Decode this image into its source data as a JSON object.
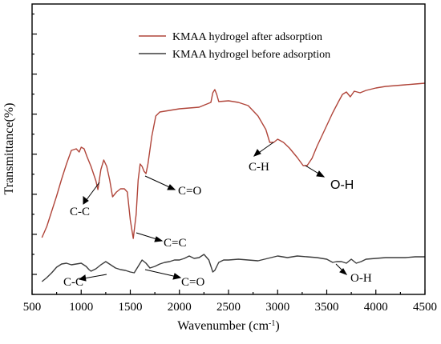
{
  "chart_data": {
    "type": "line",
    "xlabel_main": "Wavenumber (cm",
    "xlabel_sup": "-1",
    "xlabel_end": ")",
    "ylabel": "Transmittance(%)",
    "xlim": [
      500,
      4500
    ],
    "xticks": [
      500,
      1000,
      1500,
      2000,
      2500,
      3000,
      3500,
      4000,
      4500
    ],
    "xtick_labels": [
      "500",
      "1000",
      "1500",
      "2000",
      "2500",
      "3000",
      "3500",
      "4000",
      "4500"
    ],
    "y_tick_labels_shown": false,
    "legend_position": "top-right",
    "series": [
      {
        "name": "KMAA hydrogel after adsorption",
        "color": "#b0453a",
        "points": [
          [
            600,
            297
          ],
          [
            650,
            283
          ],
          [
            700,
            264
          ],
          [
            750,
            245
          ],
          [
            800,
            224
          ],
          [
            850,
            205
          ],
          [
            900,
            188
          ],
          [
            950,
            186
          ],
          [
            980,
            190
          ],
          [
            1000,
            184
          ],
          [
            1030,
            186
          ],
          [
            1060,
            196
          ],
          [
            1100,
            208
          ],
          [
            1150,
            226
          ],
          [
            1170,
            237
          ],
          [
            1200,
            212
          ],
          [
            1230,
            200
          ],
          [
            1260,
            208
          ],
          [
            1290,
            225
          ],
          [
            1320,
            246
          ],
          [
            1360,
            240
          ],
          [
            1400,
            236
          ],
          [
            1440,
            236
          ],
          [
            1470,
            240
          ],
          [
            1500,
            275
          ],
          [
            1530,
            298
          ],
          [
            1560,
            268
          ],
          [
            1580,
            225
          ],
          [
            1600,
            205
          ],
          [
            1620,
            208
          ],
          [
            1640,
            214
          ],
          [
            1660,
            217
          ],
          [
            1680,
            205
          ],
          [
            1720,
            170
          ],
          [
            1760,
            145
          ],
          [
            1800,
            140
          ],
          [
            1900,
            138
          ],
          [
            2000,
            136
          ],
          [
            2100,
            135
          ],
          [
            2200,
            134
          ],
          [
            2280,
            130
          ],
          [
            2320,
            128
          ],
          [
            2340,
            116
          ],
          [
            2360,
            112
          ],
          [
            2380,
            118
          ],
          [
            2400,
            127
          ],
          [
            2500,
            126
          ],
          [
            2600,
            128
          ],
          [
            2700,
            132
          ],
          [
            2800,
            145
          ],
          [
            2880,
            162
          ],
          [
            2920,
            178
          ],
          [
            2960,
            178
          ],
          [
            3000,
            174
          ],
          [
            3060,
            178
          ],
          [
            3120,
            185
          ],
          [
            3200,
            197
          ],
          [
            3260,
            207
          ],
          [
            3300,
            207
          ],
          [
            3350,
            198
          ],
          [
            3400,
            183
          ],
          [
            3480,
            162
          ],
          [
            3560,
            141
          ],
          [
            3620,
            127
          ],
          [
            3660,
            118
          ],
          [
            3700,
            115
          ],
          [
            3740,
            121
          ],
          [
            3780,
            114
          ],
          [
            3840,
            116
          ],
          [
            3900,
            113
          ],
          [
            4000,
            110
          ],
          [
            4100,
            108
          ],
          [
            4200,
            107
          ],
          [
            4300,
            106
          ],
          [
            4400,
            105
          ],
          [
            4500,
            104
          ]
        ]
      },
      {
        "name": "KMAA hydrogel before adsorption",
        "color": "#3c3c3c",
        "points": [
          [
            600,
            352
          ],
          [
            650,
            347
          ],
          [
            700,
            341
          ],
          [
            750,
            334
          ],
          [
            800,
            330
          ],
          [
            850,
            329
          ],
          [
            900,
            331
          ],
          [
            950,
            330
          ],
          [
            1000,
            329
          ],
          [
            1050,
            333
          ],
          [
            1080,
            337
          ],
          [
            1100,
            339
          ],
          [
            1150,
            336
          ],
          [
            1200,
            331
          ],
          [
            1250,
            327
          ],
          [
            1300,
            331
          ],
          [
            1350,
            335
          ],
          [
            1400,
            337
          ],
          [
            1450,
            338
          ],
          [
            1500,
            340
          ],
          [
            1540,
            341
          ],
          [
            1580,
            333
          ],
          [
            1620,
            325
          ],
          [
            1660,
            329
          ],
          [
            1700,
            335
          ],
          [
            1750,
            333
          ],
          [
            1800,
            330
          ],
          [
            1850,
            328
          ],
          [
            1900,
            327
          ],
          [
            1950,
            325
          ],
          [
            2000,
            325
          ],
          [
            2050,
            323
          ],
          [
            2100,
            320
          ],
          [
            2150,
            323
          ],
          [
            2200,
            322
          ],
          [
            2250,
            318
          ],
          [
            2300,
            325
          ],
          [
            2340,
            340
          ],
          [
            2360,
            338
          ],
          [
            2400,
            328
          ],
          [
            2450,
            325
          ],
          [
            2500,
            325
          ],
          [
            2600,
            324
          ],
          [
            2700,
            325
          ],
          [
            2800,
            326
          ],
          [
            2900,
            323
          ],
          [
            3000,
            320
          ],
          [
            3100,
            322
          ],
          [
            3200,
            320
          ],
          [
            3300,
            321
          ],
          [
            3400,
            322
          ],
          [
            3500,
            324
          ],
          [
            3560,
            328
          ],
          [
            3600,
            327
          ],
          [
            3650,
            327
          ],
          [
            3700,
            329
          ],
          [
            3750,
            324
          ],
          [
            3800,
            329
          ],
          [
            3850,
            327
          ],
          [
            3900,
            324
          ],
          [
            4000,
            323
          ],
          [
            4100,
            322
          ],
          [
            4200,
            322
          ],
          [
            4300,
            322
          ],
          [
            4400,
            321
          ],
          [
            4500,
            321
          ]
        ]
      }
    ],
    "annotations": [
      {
        "text": "C-C",
        "series": 0
      },
      {
        "text": "C=O",
        "series": 0
      },
      {
        "text": "C=C",
        "series": 0
      },
      {
        "text": "C-H",
        "series": 0
      },
      {
        "text": "O-H",
        "series": 0
      },
      {
        "text": "C-C",
        "series": 1
      },
      {
        "text": "C=O",
        "series": 1
      },
      {
        "text": "O-H",
        "series": 1
      }
    ]
  }
}
